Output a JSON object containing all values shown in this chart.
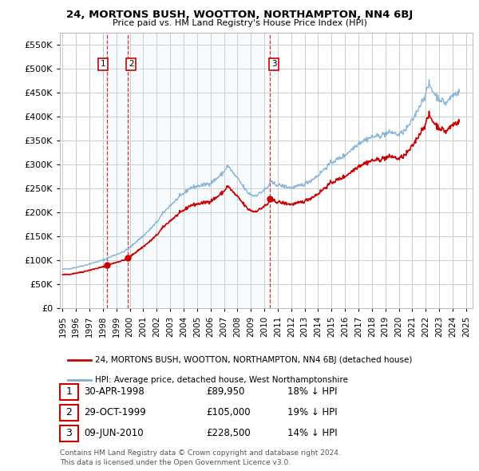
{
  "title": "24, MORTONS BUSH, WOOTTON, NORTHAMPTON, NN4 6BJ",
  "subtitle": "Price paid vs. HM Land Registry's House Price Index (HPI)",
  "legend_line1": "24, MORTONS BUSH, WOOTTON, NORTHAMPTON, NN4 6BJ (detached house)",
  "legend_line2": "HPI: Average price, detached house, West Northamptonshire",
  "footer1": "Contains HM Land Registry data © Crown copyright and database right 2024.",
  "footer2": "This data is licensed under the Open Government Licence v3.0.",
  "table_rows": [
    {
      "num": "1",
      "date": "30-APR-1998",
      "price": "£89,950",
      "pct": "18% ↓ HPI"
    },
    {
      "num": "2",
      "date": "29-OCT-1999",
      "price": "£105,000",
      "pct": "19% ↓ HPI"
    },
    {
      "num": "3",
      "date": "09-JUN-2010",
      "price": "£228,500",
      "pct": "14% ↓ HPI"
    }
  ],
  "sales_years": [
    1998.33,
    1999.83,
    2010.44
  ],
  "sales_prices": [
    89950,
    105000,
    228500
  ],
  "hpi_line_color": "#7bafd4",
  "hpi_fill_color": "#d6e8f5",
  "price_line_color": "#cc0000",
  "marker_color": "#cc0000",
  "dashed_color": "#cc0000",
  "grid_color": "#cccccc",
  "bg_color": "#ffffff",
  "ylim": [
    0,
    575000
  ],
  "yticks": [
    0,
    50000,
    100000,
    150000,
    200000,
    250000,
    300000,
    350000,
    400000,
    450000,
    500000,
    550000
  ],
  "xlim": [
    1994.8,
    2025.5
  ],
  "xtick_years": [
    1995,
    1996,
    1997,
    1998,
    1999,
    2000,
    2001,
    2002,
    2003,
    2004,
    2005,
    2006,
    2007,
    2008,
    2009,
    2010,
    2011,
    2012,
    2013,
    2014,
    2015,
    2016,
    2017,
    2018,
    2019,
    2020,
    2021,
    2022,
    2023,
    2024,
    2025
  ]
}
